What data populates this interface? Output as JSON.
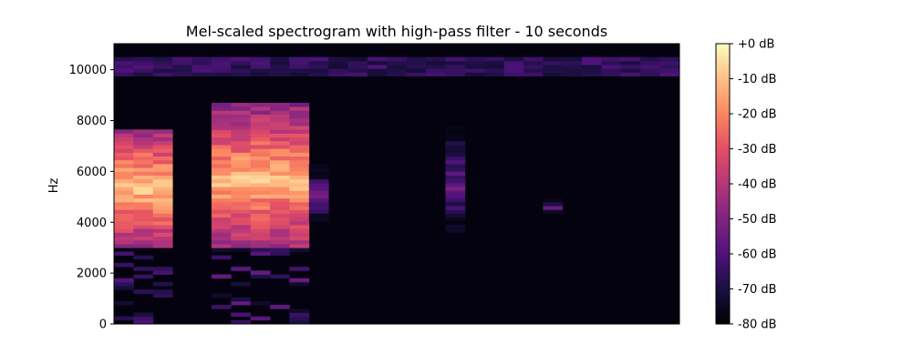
{
  "chart_data": {
    "type": "heatmap",
    "title": "Mel-scaled spectrogram with high-pass filter - 10 seconds",
    "xlabel": "",
    "ylabel": "Hz",
    "ylim": [
      0,
      11025
    ],
    "y_ticks": [
      0,
      2000,
      4000,
      6000,
      8000,
      10000
    ],
    "x_ticks": [],
    "colormap": "magma",
    "colorbar": {
      "range": [
        -80,
        0
      ],
      "unit": "dB",
      "ticks": [
        {
          "value": 0,
          "label": "+0 dB"
        },
        {
          "value": -10,
          "label": "-10 dB"
        },
        {
          "value": -20,
          "label": "-20 dB"
        },
        {
          "value": -30,
          "label": "-30 dB"
        },
        {
          "value": -40,
          "label": "-40 dB"
        },
        {
          "value": -50,
          "label": "-50 dB"
        },
        {
          "value": -60,
          "label": "-60 dB"
        },
        {
          "value": -70,
          "label": "-70 dB"
        },
        {
          "value": -80,
          "label": "-80 dB"
        }
      ]
    },
    "time_frames": 29,
    "freq_bins_hz": [
      0,
      150,
      300,
      450,
      600,
      750,
      900,
      1050,
      1200,
      1350,
      1500,
      1650,
      1800,
      1950,
      2100,
      2250,
      2400,
      2550,
      2700,
      2850,
      3000,
      3150,
      3300,
      3450,
      3600,
      3750,
      3900,
      4050,
      4200,
      4350,
      4500,
      4650,
      4800,
      4950,
      5100,
      5250,
      5400,
      5550,
      5700,
      5850,
      6000,
      6150,
      6300,
      6450,
      6600,
      6750,
      6900,
      7050,
      7200,
      7350,
      7500,
      7650,
      7800,
      7950,
      8100,
      8250,
      8400,
      8550,
      8700,
      8850,
      9000,
      9150,
      9300,
      9450,
      9600,
      9750,
      9900,
      10050,
      10200,
      10350,
      10500,
      10650,
      10800,
      10950
    ],
    "events": [
      {
        "t": [
          0,
          2
        ],
        "peak_hz": 5300,
        "peak_db": -2,
        "band_hz": [
          3000,
          7600
        ]
      },
      {
        "t": [
          5,
          9
        ],
        "peak_hz": 5600,
        "peak_db": -4,
        "band_hz": [
          3000,
          8600
        ]
      },
      {
        "t": [
          9,
          10
        ],
        "peak_hz": 5000,
        "peak_db": -45,
        "band_hz": [
          3500,
          6200
        ]
      },
      {
        "t": [
          17,
          17
        ],
        "peak_hz": 5400,
        "peak_db": -48,
        "band_hz": [
          3500,
          9500
        ]
      },
      {
        "t": [
          22,
          22
        ],
        "peak_hz": 4500,
        "peak_db": -52,
        "band_hz": [
          4000,
          5200
        ]
      }
    ],
    "top_band": {
      "hz": [
        9700,
        10400
      ],
      "level_db": -60
    }
  }
}
